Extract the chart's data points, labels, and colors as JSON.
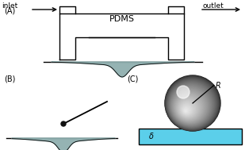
{
  "bg_color": "#ffffff",
  "biofilm_color": "#8aabab",
  "cyan_color": "#5bcfea",
  "label_A": "(A)",
  "label_B": "(B)",
  "label_C": "(C)",
  "label_pdms": "PDMS",
  "label_inlet": "inlet",
  "label_outlet": "outlet",
  "label_R": "R",
  "label_delta": "δ",
  "lw": 1.0
}
